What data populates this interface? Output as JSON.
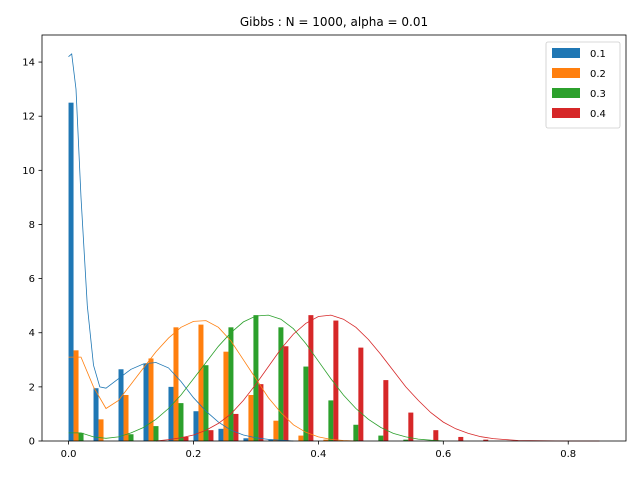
{
  "chart_data": {
    "type": "bar",
    "title": "Gibbs : N = 1000, alpha = 0.01",
    "xlabel": "",
    "ylabel": "",
    "xlim": [
      -0.0425,
      0.8925
    ],
    "ylim": [
      0,
      15
    ],
    "xticks": [
      0.0,
      0.2,
      0.4,
      0.6,
      0.8
    ],
    "xtick_labels": [
      "0.0",
      "0.2",
      "0.4",
      "0.6",
      "0.8"
    ],
    "yticks": [
      0,
      2,
      4,
      6,
      8,
      10,
      12,
      14
    ],
    "ytick_labels": [
      "0",
      "2",
      "4",
      "6",
      "8",
      "10",
      "12",
      "14"
    ],
    "grid": false,
    "legend": "top-right",
    "bin_width": 0.04,
    "bin_start": 0.0,
    "series": [
      {
        "name": "0.1",
        "color": "#1f77b4",
        "values": [
          12.5,
          1.95,
          2.65,
          2.85,
          2.0,
          1.1,
          0.45,
          0.1,
          0.05,
          0.0,
          0.0,
          0.0,
          0.0,
          0.0,
          0.0,
          0.0,
          0.0,
          0.0,
          0.0,
          0.0,
          0.0
        ],
        "kde": [
          [
            0.0,
            14.2
          ],
          [
            0.005,
            14.3
          ],
          [
            0.012,
            13.0
          ],
          [
            0.02,
            9.0
          ],
          [
            0.03,
            5.0
          ],
          [
            0.04,
            2.8
          ],
          [
            0.05,
            2.0
          ],
          [
            0.06,
            1.95
          ],
          [
            0.08,
            2.3
          ],
          [
            0.1,
            2.65
          ],
          [
            0.12,
            2.85
          ],
          [
            0.14,
            2.9
          ],
          [
            0.16,
            2.7
          ],
          [
            0.18,
            2.2
          ],
          [
            0.2,
            1.6
          ],
          [
            0.22,
            1.1
          ],
          [
            0.24,
            0.7
          ],
          [
            0.26,
            0.4
          ],
          [
            0.28,
            0.22
          ],
          [
            0.3,
            0.12
          ],
          [
            0.32,
            0.06
          ],
          [
            0.34,
            0.03
          ],
          [
            0.36,
            0.0
          ]
        ]
      },
      {
        "name": "0.2",
        "color": "#ff7f0e",
        "values": [
          3.35,
          0.8,
          1.7,
          3.05,
          4.2,
          4.3,
          3.3,
          1.7,
          0.75,
          0.2,
          0.05,
          0.0,
          0.0,
          0.0,
          0.0,
          0.0,
          0.0,
          0.0,
          0.0,
          0.0,
          0.0
        ],
        "kde": [
          [
            0.0,
            3.1
          ],
          [
            0.02,
            3.1
          ],
          [
            0.04,
            2.0
          ],
          [
            0.06,
            1.2
          ],
          [
            0.08,
            1.5
          ],
          [
            0.1,
            2.1
          ],
          [
            0.12,
            2.7
          ],
          [
            0.14,
            3.3
          ],
          [
            0.16,
            3.8
          ],
          [
            0.18,
            4.2
          ],
          [
            0.2,
            4.42
          ],
          [
            0.22,
            4.45
          ],
          [
            0.24,
            4.2
          ],
          [
            0.26,
            3.7
          ],
          [
            0.28,
            3.0
          ],
          [
            0.3,
            2.3
          ],
          [
            0.32,
            1.6
          ],
          [
            0.34,
            1.05
          ],
          [
            0.36,
            0.6
          ],
          [
            0.38,
            0.32
          ],
          [
            0.4,
            0.15
          ],
          [
            0.42,
            0.06
          ],
          [
            0.44,
            0.02
          ],
          [
            0.46,
            0.0
          ]
        ]
      },
      {
        "name": "0.3",
        "color": "#2ca02c",
        "values": [
          0.3,
          0.0,
          0.25,
          0.55,
          1.4,
          2.8,
          4.2,
          4.65,
          4.2,
          2.75,
          1.5,
          0.6,
          0.2,
          0.05,
          0.0,
          0.0,
          0.0,
          0.0,
          0.0,
          0.0,
          0.0
        ],
        "kde": [
          [
            0.0,
            0.3
          ],
          [
            0.02,
            0.3
          ],
          [
            0.04,
            0.15
          ],
          [
            0.06,
            0.1
          ],
          [
            0.08,
            0.15
          ],
          [
            0.1,
            0.3
          ],
          [
            0.12,
            0.5
          ],
          [
            0.14,
            0.8
          ],
          [
            0.16,
            1.2
          ],
          [
            0.18,
            1.7
          ],
          [
            0.2,
            2.3
          ],
          [
            0.22,
            2.9
          ],
          [
            0.24,
            3.5
          ],
          [
            0.26,
            4.0
          ],
          [
            0.28,
            4.4
          ],
          [
            0.3,
            4.62
          ],
          [
            0.32,
            4.65
          ],
          [
            0.34,
            4.5
          ],
          [
            0.36,
            4.15
          ],
          [
            0.38,
            3.6
          ],
          [
            0.4,
            2.95
          ],
          [
            0.42,
            2.3
          ],
          [
            0.44,
            1.7
          ],
          [
            0.46,
            1.2
          ],
          [
            0.48,
            0.8
          ],
          [
            0.5,
            0.5
          ],
          [
            0.52,
            0.28
          ],
          [
            0.54,
            0.15
          ],
          [
            0.56,
            0.07
          ],
          [
            0.58,
            0.03
          ],
          [
            0.6,
            0.0
          ]
        ]
      },
      {
        "name": "0.4",
        "color": "#d62728",
        "values": [
          0.0,
          0.0,
          0.0,
          0.0,
          0.15,
          0.4,
          1.0,
          2.1,
          3.5,
          4.65,
          4.45,
          3.45,
          2.25,
          1.05,
          0.4,
          0.15,
          0.05,
          0.0,
          0.0,
          0.0,
          0.0
        ],
        "kde": [
          [
            0.14,
            0.0
          ],
          [
            0.16,
            0.05
          ],
          [
            0.18,
            0.12
          ],
          [
            0.2,
            0.22
          ],
          [
            0.22,
            0.4
          ],
          [
            0.24,
            0.65
          ],
          [
            0.26,
            1.0
          ],
          [
            0.28,
            1.5
          ],
          [
            0.3,
            2.1
          ],
          [
            0.32,
            2.75
          ],
          [
            0.34,
            3.4
          ],
          [
            0.36,
            3.95
          ],
          [
            0.38,
            4.35
          ],
          [
            0.4,
            4.6
          ],
          [
            0.42,
            4.65
          ],
          [
            0.44,
            4.5
          ],
          [
            0.46,
            4.2
          ],
          [
            0.48,
            3.75
          ],
          [
            0.5,
            3.2
          ],
          [
            0.52,
            2.6
          ],
          [
            0.54,
            2.0
          ],
          [
            0.56,
            1.5
          ],
          [
            0.58,
            1.05
          ],
          [
            0.6,
            0.7
          ],
          [
            0.62,
            0.45
          ],
          [
            0.64,
            0.28
          ],
          [
            0.66,
            0.16
          ],
          [
            0.68,
            0.09
          ],
          [
            0.7,
            0.05
          ],
          [
            0.72,
            0.02
          ],
          [
            0.74,
            0.01
          ],
          [
            0.8,
            0.0
          ],
          [
            0.85,
            0.0
          ]
        ]
      }
    ]
  }
}
